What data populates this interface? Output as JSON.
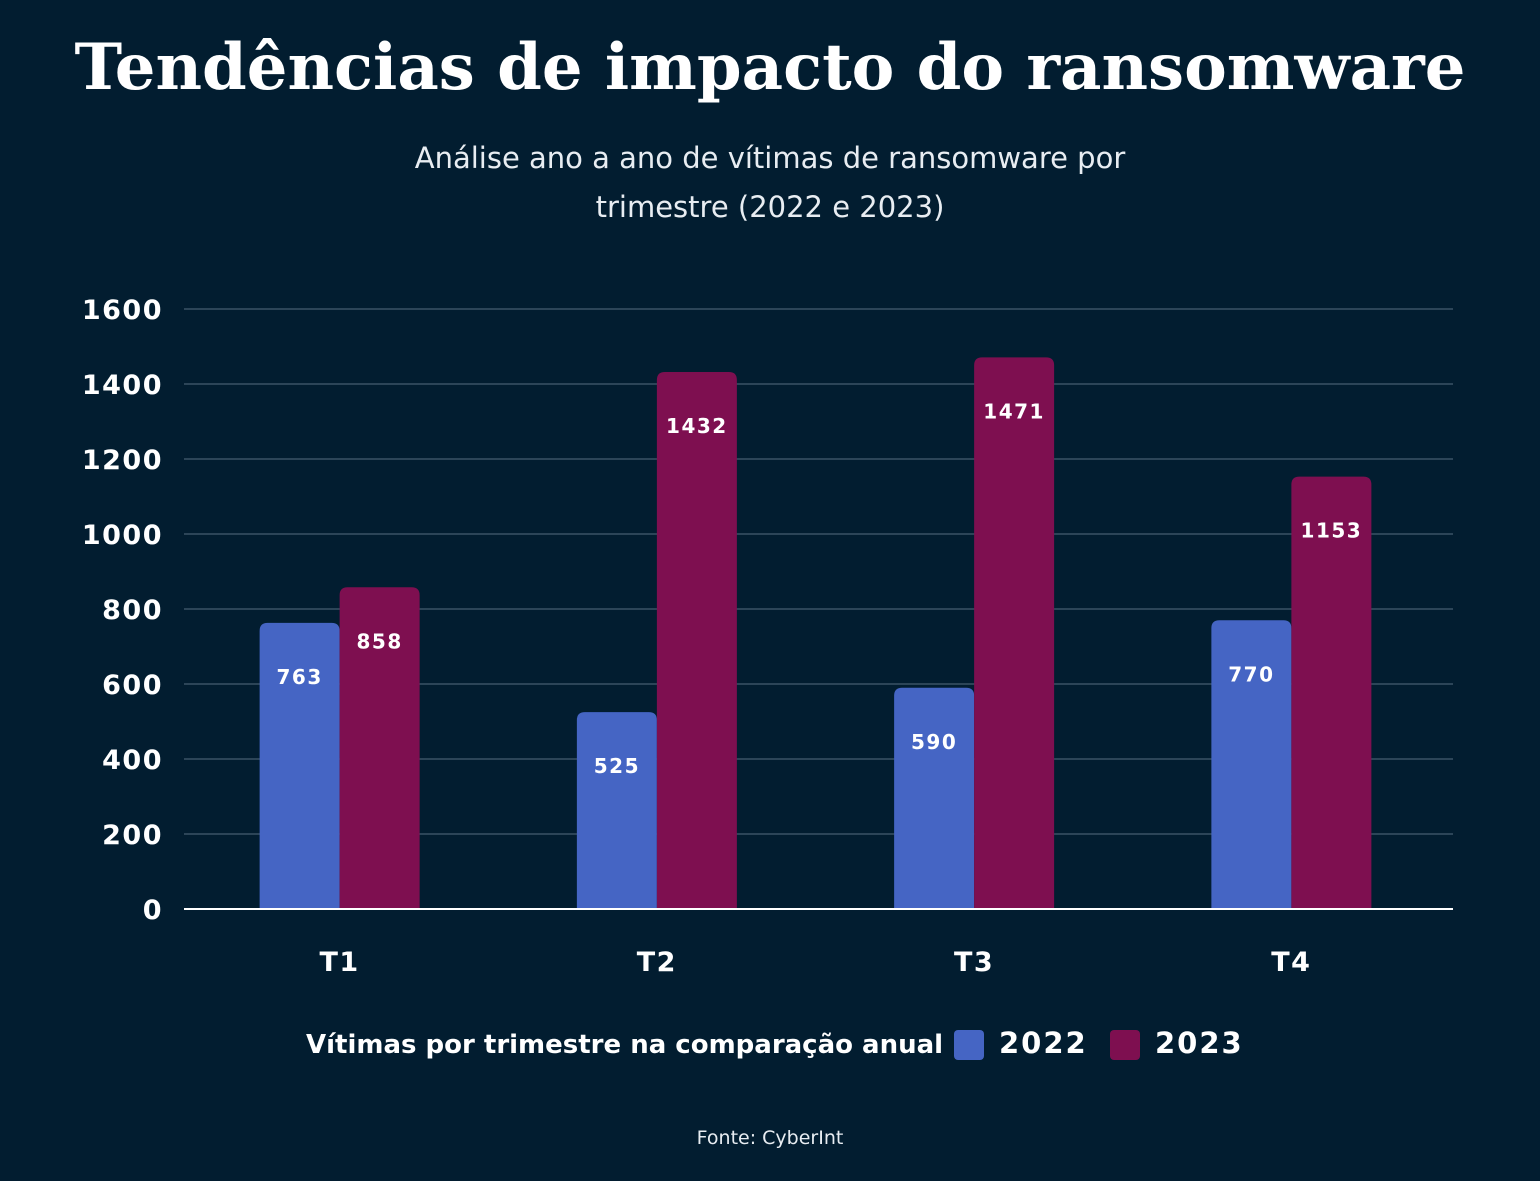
{
  "chart_data": {
    "type": "bar",
    "title": "Tendências de impacto do ransomware",
    "subtitle_line1": "Análise ano a ano de vítimas de ransomware por",
    "subtitle_line2": "trimestre (2022 e 2023)",
    "categories": [
      "T1",
      "T2",
      "T3",
      "T4"
    ],
    "series": [
      {
        "name": "2022",
        "values": [
          763,
          525,
          590,
          770
        ],
        "color": "#4565c4"
      },
      {
        "name": "2023",
        "values": [
          858,
          1432,
          1471,
          1153
        ],
        "color": "#7e0f50"
      }
    ],
    "ylim": [
      0,
      1600
    ],
    "yticks": [
      "0",
      "200",
      "400",
      "600",
      "800",
      "1000",
      "1200",
      "1400",
      "1600"
    ],
    "grid": true,
    "legend_title": "Vítimas por trimestre na comparação anual",
    "legend_position": "bottom",
    "source": "Fonte: CyberInt"
  }
}
